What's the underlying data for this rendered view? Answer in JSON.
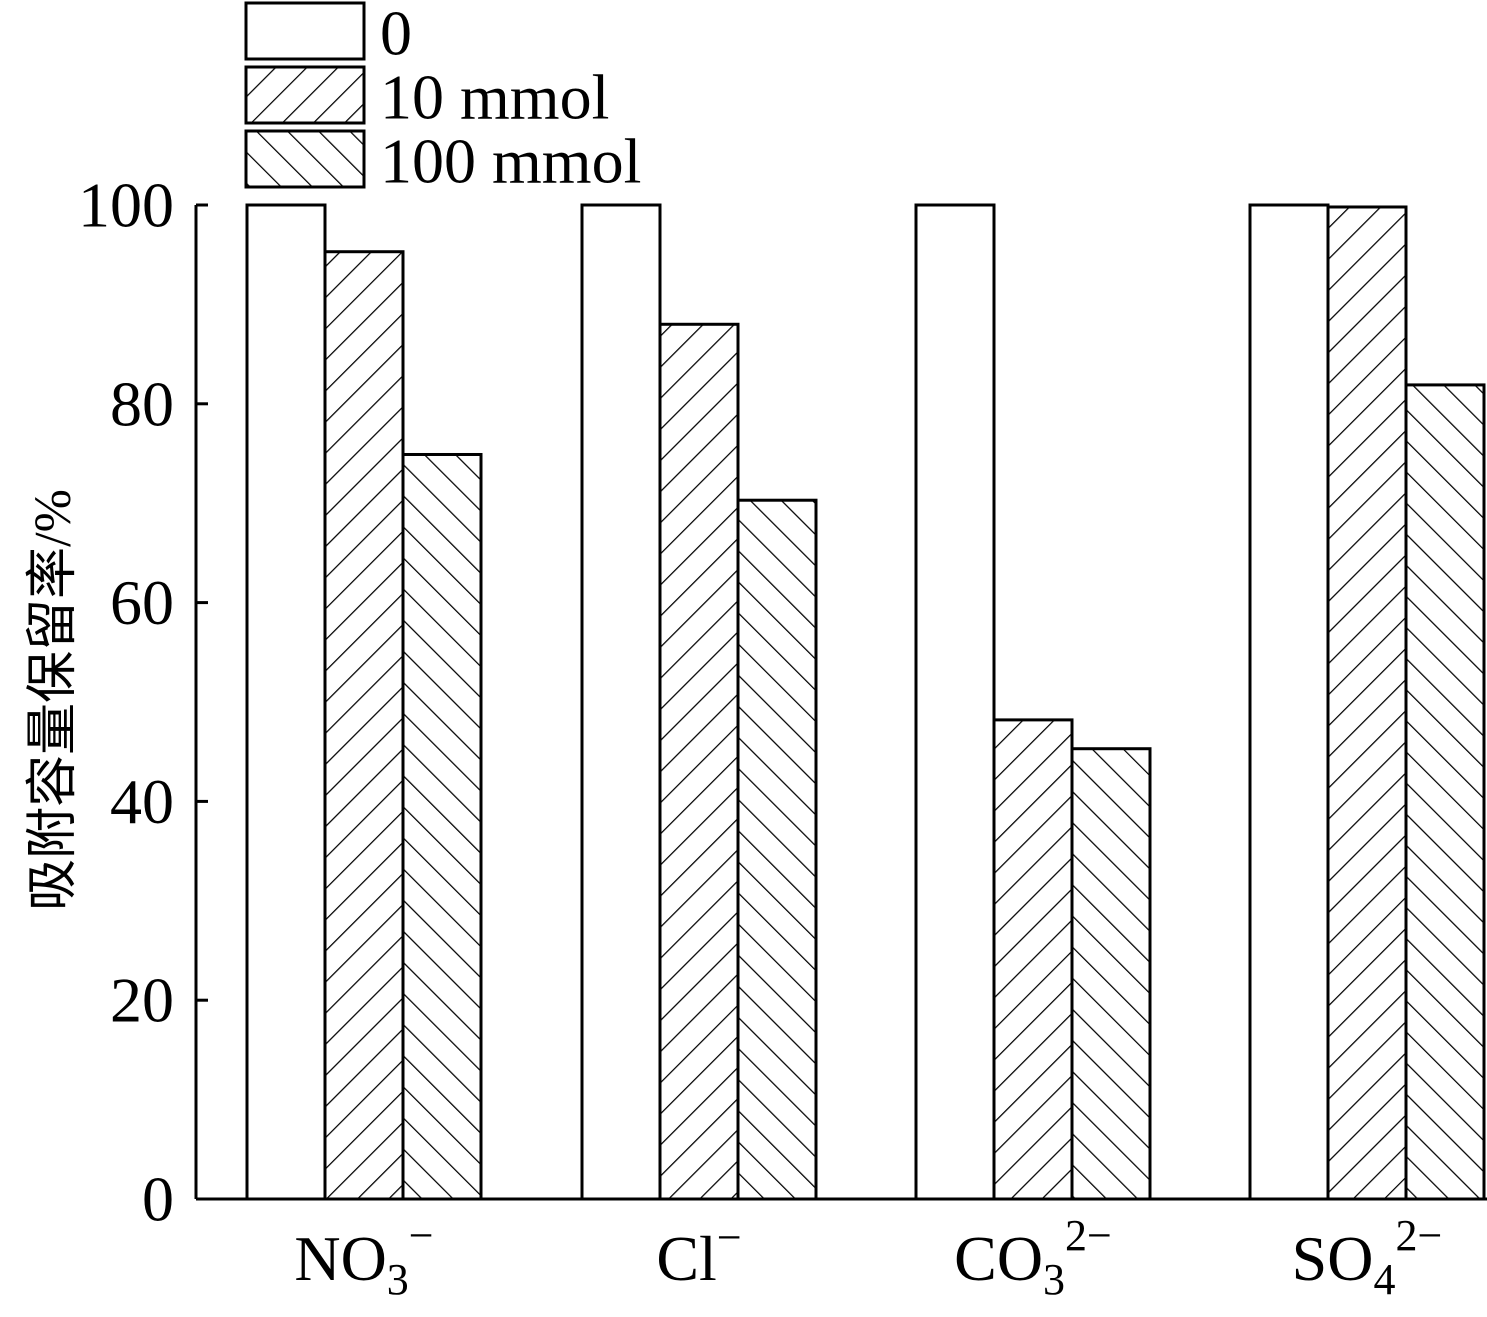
{
  "chart_data": {
    "type": "bar",
    "title": "",
    "xlabel": "",
    "ylabel": "吸附容量保留率/%",
    "ylim": [
      0,
      100
    ],
    "yticks": [
      "0",
      "20",
      "40",
      "60",
      "80",
      "100"
    ],
    "grid": false,
    "legend_position": "top-left",
    "categories": [
      {
        "base": "NO",
        "sub": "3",
        "sup": "−"
      },
      {
        "base": "Cl",
        "sub": "",
        "sup": "−"
      },
      {
        "base": "CO",
        "sub": "3",
        "sup": "2−"
      },
      {
        "base": "SO",
        "sub": "4",
        "sup": "2−"
      }
    ],
    "series": [
      {
        "name": "0",
        "pattern": "none",
        "values": [
          100,
          100,
          100,
          100
        ]
      },
      {
        "name": "10 mmol",
        "pattern": "forward-hatch",
        "values": [
          95.3,
          88.0,
          48.2,
          99.8
        ]
      },
      {
        "name": "100 mmol",
        "pattern": "back-hatch",
        "values": [
          74.9,
          70.3,
          45.3,
          81.9
        ]
      }
    ]
  }
}
